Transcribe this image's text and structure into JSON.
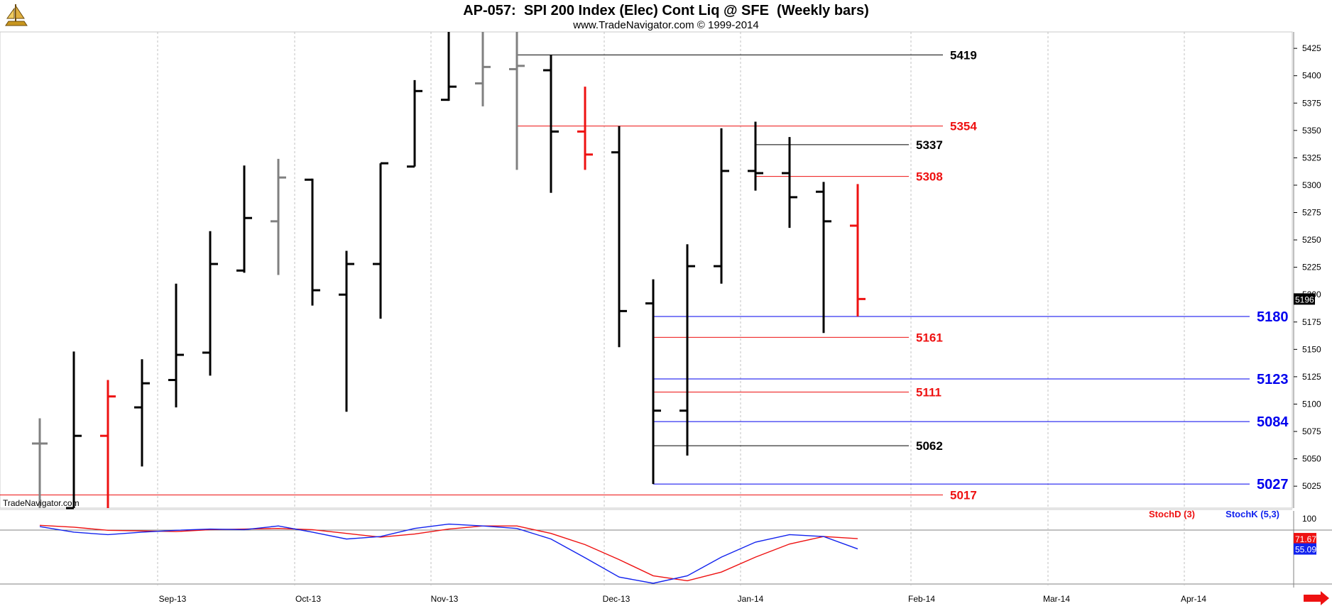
{
  "chart_data": [
    {
      "type": "ohlc",
      "title": "AP-057:  SPI 200 Index (Elec) Cont Liq @ SFE  (Weekly bars)",
      "subtitle": "www.TradeNavigator.com © 1999-2014",
      "watermark": "TradeNavigator.com",
      "ylim": [
        5005,
        5440
      ],
      "y_ticks": [
        5025,
        5050,
        5075,
        5100,
        5125,
        5150,
        5175,
        5200,
        5225,
        5250,
        5275,
        5300,
        5325,
        5350,
        5375,
        5400,
        5425
      ],
      "x_labels": [
        "Sep-13",
        "Oct-13",
        "Nov-13",
        "Dec-13",
        "Jan-14",
        "Feb-14",
        "Mar-14",
        "Apr-14"
      ],
      "last_price": "5196",
      "colors": {
        "up": "#000000",
        "down": "#ee1111",
        "neutral": "#808080",
        "blue": "#0000ee",
        "red": "#ee1111"
      },
      "bars": [
        {
          "week": 0,
          "open": 5064,
          "high": 5087,
          "low": 5005,
          "close": 5064,
          "color": "#808080"
        },
        {
          "week": 1,
          "open": 5005,
          "high": 5148,
          "low": 5005,
          "close": 5071,
          "color": "#000000"
        },
        {
          "week": 2,
          "open": 5071,
          "high": 5122,
          "low": 5005,
          "close": 5107,
          "color": "#ee1111"
        },
        {
          "week": 3,
          "open": 5097,
          "high": 5141,
          "low": 5043,
          "close": 5119,
          "color": "#000000"
        },
        {
          "week": 4,
          "open": 5122,
          "high": 5210,
          "low": 5097,
          "close": 5145,
          "color": "#000000"
        },
        {
          "week": 5,
          "open": 5147,
          "high": 5258,
          "low": 5126,
          "close": 5228,
          "color": "#000000"
        },
        {
          "week": 6,
          "open": 5222,
          "high": 5318,
          "low": 5220,
          "close": 5270,
          "color": "#000000"
        },
        {
          "week": 7,
          "open": 5267,
          "high": 5324,
          "low": 5218,
          "close": 5307,
          "color": "#808080"
        },
        {
          "week": 8,
          "open": 5305,
          "high": 5306,
          "low": 5190,
          "close": 5204,
          "color": "#000000"
        },
        {
          "week": 9,
          "open": 5200,
          "high": 5240,
          "low": 5093,
          "close": 5228,
          "color": "#000000"
        },
        {
          "week": 10,
          "open": 5228,
          "high": 5320,
          "low": 5178,
          "close": 5320,
          "color": "#000000"
        },
        {
          "week": 11,
          "open": 5317,
          "high": 5396,
          "low": 5317,
          "close": 5386,
          "color": "#000000"
        },
        {
          "week": 12,
          "open": 5378,
          "high": 5440,
          "low": 5377,
          "close": 5390,
          "color": "#000000"
        },
        {
          "week": 13,
          "open": 5393,
          "high": 5440,
          "low": 5372,
          "close": 5408,
          "color": "#808080"
        },
        {
          "week": 14,
          "open": 5406,
          "high": 5440,
          "low": 5314,
          "close": 5409,
          "color": "#808080"
        },
        {
          "week": 15,
          "open": 5405,
          "high": 5419,
          "low": 5293,
          "close": 5349,
          "color": "#000000"
        },
        {
          "week": 16,
          "open": 5349,
          "high": 5390,
          "low": 5314,
          "close": 5328,
          "color": "#ee1111"
        },
        {
          "week": 17,
          "open": 5330,
          "high": 5354,
          "low": 5152,
          "close": 5185,
          "color": "#000000"
        },
        {
          "week": 18,
          "open": 5192,
          "high": 5214,
          "low": 5027,
          "close": 5094,
          "color": "#000000"
        },
        {
          "week": 19,
          "open": 5094,
          "high": 5246,
          "low": 5053,
          "close": 5226,
          "color": "#000000"
        },
        {
          "week": 20,
          "open": 5226,
          "high": 5352,
          "low": 5210,
          "close": 5313,
          "color": "#000000"
        },
        {
          "week": 21,
          "open": 5313,
          "high": 5358,
          "low": 5295,
          "close": 5311,
          "color": "#000000"
        },
        {
          "week": 22,
          "open": 5311,
          "high": 5344,
          "low": 5261,
          "close": 5289,
          "color": "#000000"
        },
        {
          "week": 23,
          "open": 5294,
          "high": 5303,
          "low": 5165,
          "close": 5267,
          "color": "#000000"
        },
        {
          "week": 24,
          "open": 5263,
          "high": 5301,
          "low": 5180,
          "close": 5196,
          "color": "#ee1111"
        }
      ],
      "levels": [
        {
          "value": 5419,
          "label": "5419",
          "color": "#000000",
          "from_week": 14,
          "to_week": 26.5,
          "label_side": "right-short",
          "size": "normal"
        },
        {
          "value": 5354,
          "label": "5354",
          "color": "#ee1111",
          "from_week": 14,
          "to_week": 26.5,
          "label_side": "right-short",
          "size": "normal"
        },
        {
          "value": 5337,
          "label": "5337",
          "color": "#000000",
          "from_week": 21,
          "to_week": 25.5,
          "label_side": "right-short",
          "size": "normal"
        },
        {
          "value": 5308,
          "label": "5308",
          "color": "#ee1111",
          "from_week": 21,
          "to_week": 25.5,
          "label_side": "right-short",
          "size": "normal"
        },
        {
          "value": 5180,
          "label": "5180",
          "color": "#0000ee",
          "from_week": 18,
          "to_week": 35.5,
          "label_side": "right-long",
          "size": "big"
        },
        {
          "value": 5161,
          "label": "5161",
          "color": "#ee1111",
          "from_week": 18,
          "to_week": 25.5,
          "label_side": "right-short",
          "size": "normal"
        },
        {
          "value": 5123,
          "label": "5123",
          "color": "#0000ee",
          "from_week": 18,
          "to_week": 35.5,
          "label_side": "right-long",
          "size": "big"
        },
        {
          "value": 5111,
          "label": "5111",
          "color": "#ee1111",
          "from_week": 18,
          "to_week": 25.5,
          "label_side": "right-short",
          "size": "normal"
        },
        {
          "value": 5084,
          "label": "5084",
          "color": "#0000ee",
          "from_week": 18,
          "to_week": 35.5,
          "label_side": "right-long",
          "size": "big"
        },
        {
          "value": 5062,
          "label": "5062",
          "color": "#000000",
          "from_week": 18,
          "to_week": 25.5,
          "label_side": "right-short",
          "size": "normal"
        },
        {
          "value": 5027,
          "label": "5027",
          "color": "#0000ee",
          "from_week": 18,
          "to_week": 35.5,
          "label_side": "right-long",
          "size": "big"
        },
        {
          "value": 5017,
          "label": "5017",
          "color": "#ee1111",
          "from_week": -1.2,
          "to_week": 26.5,
          "label_side": "right-short",
          "size": "normal"
        }
      ]
    },
    {
      "type": "line",
      "indicator": "Stochastic",
      "ylim": [
        -8,
        107
      ],
      "y_ticks": [
        100
      ],
      "series": [
        {
          "name": "StochD (3)",
          "color": "#ee1111",
          "values": [
            93,
            90,
            85,
            84,
            83,
            86,
            87,
            88,
            86,
            80,
            74,
            79,
            87,
            92,
            92,
            80,
            62,
            38,
            12,
            4,
            18,
            42,
            63,
            75,
            71.67
          ]
        },
        {
          "name": "StochK (5,3)",
          "color": "#1122ee",
          "values": [
            91,
            82,
            78,
            82,
            85,
            87,
            86,
            92,
            82,
            71,
            75,
            88,
            95,
            92,
            88,
            71,
            41,
            10,
            0,
            12,
            42,
            66,
            78,
            75,
            55.09
          ]
        }
      ],
      "last_values": [
        "71.67",
        "55.09"
      ]
    }
  ]
}
